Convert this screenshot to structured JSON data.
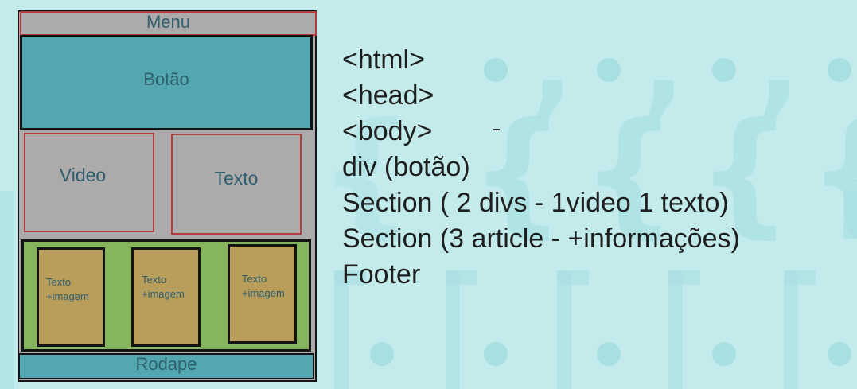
{
  "wireframe": {
    "menu": "Menu",
    "button_area": "Botão",
    "video": "Video",
    "text": "Texto",
    "cards": [
      "Texto\n+imagem",
      "Texto\n+imagem",
      "Texto\n+imagem"
    ],
    "footer": "Rodape"
  },
  "structure": [
    "<html>",
    "<head>",
    "<body>",
    "div (botão)",
    "Section ( 2 divs - 1video 1 texto)",
    "Section (3 article - +informações)",
    "Footer"
  ],
  "colors": {
    "background": "#c3ebec",
    "pattern": "#a4dcdf",
    "gray_block": "#acaaab",
    "teal_block": "#52a7b1",
    "green_block": "#87b55d",
    "card_block": "#b89d5b",
    "red_border": "#b53a3a",
    "label_text": "#2f5f6e"
  }
}
